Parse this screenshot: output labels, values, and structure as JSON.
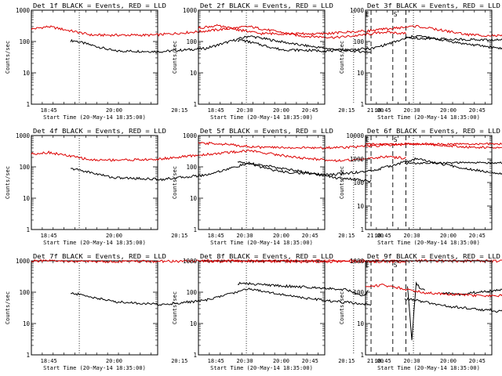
{
  "figure": {
    "series_colors": {
      "events": "#000000",
      "lld": "#dd0000"
    },
    "x_axis": {
      "label": "Start Time (20-May-14 18:35:00)",
      "unit": "UT time (minutes after 18:35:00)",
      "range_min": [
        6,
        35
      ],
      "ticks": [
        {
          "min": 10,
          "label": "18:45"
        },
        {
          "min": 25,
          "label": "20:00"
        },
        {
          "min": 40,
          "label": "20:15"
        },
        {
          "min": 55,
          "label": "20:30"
        },
        {
          "min": 70,
          "label": "20:45"
        },
        {
          "min": 85,
          "label": "21:00"
        }
      ]
    }
  },
  "chart_data": [
    {
      "type": "line",
      "title": "Det 1f BLACK = Events, RED = LLD",
      "ylabel": "Counts/sec",
      "yscale": "log",
      "ylim": [
        1,
        1000
      ],
      "yticks": [
        "1",
        "10",
        "100",
        "1000"
      ],
      "markers": {
        "dotted": [
          17,
          80
        ],
        "dashed": [
          84,
          89,
          92
        ],
        "labels": [
          "E",
          "S"
        ]
      },
      "series": [
        {
          "role": "events",
          "points": [
            [
              16,
              105
            ],
            [
              25,
              50
            ],
            [
              36,
              48
            ],
            [
              46,
              60
            ],
            [
              56,
              150
            ],
            [
              67,
              80
            ],
            [
              76,
              55
            ],
            [
              80,
              50
            ],
            [
              84,
              45
            ]
          ],
          "segments": [
            [
              15,
              84
            ]
          ]
        },
        {
          "role": "lld",
          "points": [
            [
              6,
              250
            ],
            [
              10,
              300
            ],
            [
              20,
              160
            ],
            [
              34,
              160
            ],
            [
              45,
              210
            ],
            [
              56,
              300
            ],
            [
              68,
              150
            ],
            [
              76,
              135
            ],
            [
              82,
              160
            ],
            [
              87,
              200
            ],
            [
              92,
              180
            ]
          ],
          "segments": [
            [
              6,
              92
            ]
          ]
        }
      ]
    },
    {
      "type": "line",
      "title": "Det 2f BLACK = Events, RED = LLD",
      "ylabel": "Counts/sec",
      "yscale": "log",
      "ylim": [
        1,
        1000
      ],
      "yticks": [
        "1",
        "10",
        "100",
        "1000"
      ],
      "markers": {
        "dotted": [
          17,
          80
        ],
        "dashed": [
          84,
          89,
          92
        ],
        "labels": [
          "E",
          "S"
        ]
      },
      "series": [
        {
          "role": "events",
          "points": [
            [
              16,
              110
            ],
            [
              25,
              55
            ],
            [
              36,
              50
            ],
            [
              46,
              60
            ],
            [
              56,
              155
            ],
            [
              67,
              85
            ],
            [
              76,
              60
            ],
            [
              80,
              55
            ],
            [
              84,
              50
            ]
          ],
          "segments": [
            [
              15,
              84
            ]
          ]
        },
        {
          "role": "lld",
          "points": [
            [
              6,
              270
            ],
            [
              10,
              320
            ],
            [
              20,
              180
            ],
            [
              34,
              175
            ],
            [
              45,
              220
            ],
            [
              56,
              310
            ],
            [
              68,
              165
            ],
            [
              76,
              150
            ],
            [
              82,
              180
            ],
            [
              87,
              230
            ],
            [
              92,
              210
            ]
          ],
          "segments": [
            [
              6,
              92
            ]
          ]
        }
      ]
    },
    {
      "type": "line",
      "title": "Det 3f BLACK = Events, RED = LLD",
      "ylabel": "Counts/sec",
      "yscale": "log",
      "ylim": [
        1,
        1000
      ],
      "yticks": [
        "1",
        "10",
        "100",
        "1000"
      ],
      "markers": {
        "dotted": [
          17,
          80
        ],
        "dashed": [
          84,
          89,
          92
        ],
        "labels": [
          "E",
          "S"
        ]
      },
      "series": [
        {
          "role": "events",
          "points": [
            [
              16,
              130
            ],
            [
              30,
              115
            ],
            [
              40,
              110
            ],
            [
              44,
              85
            ],
            [
              46,
              80
            ],
            [
              47,
              115
            ],
            [
              55,
              125
            ],
            [
              62,
              120
            ],
            [
              70,
              105
            ],
            [
              82,
              95
            ]
          ],
          "segments": [
            [
              15,
              82
            ]
          ]
        }
      ]
    },
    {
      "type": "line",
      "title": "Det 4f BLACK = Events, RED = LLD",
      "ylabel": "Counts/sec",
      "yscale": "log",
      "ylim": [
        1,
        1000
      ],
      "yticks": [
        "1",
        "10",
        "100",
        "1000"
      ],
      "markers": {
        "dotted": [
          17,
          80
        ],
        "dashed": [
          84,
          89,
          92
        ],
        "labels": [
          "E",
          "S"
        ]
      },
      "series": [
        {
          "role": "events",
          "points": [
            [
              16,
              85
            ],
            [
              25,
              45
            ],
            [
              36,
              40
            ],
            [
              46,
              55
            ],
            [
              56,
              130
            ],
            [
              67,
              75
            ],
            [
              76,
              45
            ],
            [
              80,
              40
            ],
            [
              84,
              35
            ]
          ],
          "segments": [
            [
              15,
              84
            ]
          ]
        },
        {
          "role": "lld",
          "points": [
            [
              6,
              260
            ],
            [
              10,
              290
            ],
            [
              20,
              165
            ],
            [
              34,
              170
            ],
            [
              45,
              240
            ],
            [
              56,
              330
            ],
            [
              68,
              190
            ],
            [
              76,
              160
            ],
            [
              82,
              170
            ],
            [
              87,
              210
            ],
            [
              92,
              190
            ]
          ],
          "segments": [
            [
              6,
              92
            ]
          ]
        }
      ]
    },
    {
      "type": "line",
      "title": "Det 5f BLACK = Events, RED = LLD",
      "ylabel": "Counts/sec",
      "yscale": "log",
      "ylim": [
        1,
        1000
      ],
      "yticks": [
        "1",
        "10",
        "100",
        "1000"
      ],
      "markers": {
        "dotted": [
          17,
          80
        ],
        "dashed": [
          84,
          89,
          92
        ],
        "labels": [
          "E",
          "S"
        ]
      },
      "series": [
        {
          "role": "events",
          "points": [
            [
              16,
              140
            ],
            [
              25,
              70
            ],
            [
              36,
              55
            ],
            [
              46,
              75
            ],
            [
              56,
              180
            ],
            [
              67,
              90
            ],
            [
              76,
              60
            ],
            [
              84,
              55
            ]
          ],
          "segments": [
            [
              15,
              84
            ]
          ]
        },
        {
          "role": "lld",
          "points": [
            [
              6,
              560
            ],
            [
              10,
              560
            ],
            [
              20,
              420
            ],
            [
              34,
              400
            ],
            [
              45,
              450
            ],
            [
              56,
              560
            ],
            [
              68,
              430
            ],
            [
              76,
              400
            ],
            [
              82,
              410
            ],
            [
              88,
              440
            ],
            [
              92,
              430
            ]
          ],
          "segments": [
            [
              6,
              92
            ]
          ]
        }
      ]
    },
    {
      "type": "line",
      "title": "Det 6f BLACK = Events, RED = LLD",
      "ylabel": "Counts/sec",
      "yscale": "log",
      "ylim": [
        1,
        10000
      ],
      "yticks": [
        "1",
        "10",
        "100",
        "1000",
        "10000"
      ],
      "markers": {
        "dotted": [
          17,
          80
        ],
        "dashed": [
          84,
          89,
          92
        ],
        "labels": [
          "E",
          "S"
        ]
      },
      "series": [
        {
          "role": "events",
          "points": [
            [
              16,
              650
            ],
            [
              30,
              700
            ],
            [
              40,
              680
            ],
            [
              44,
              420
            ],
            [
              46,
              400
            ],
            [
              47,
              650
            ],
            [
              55,
              620
            ],
            [
              62,
              600
            ],
            [
              70,
              560
            ],
            [
              82,
              480
            ]
          ],
          "segments": [
            [
              15,
              82
            ]
          ]
        },
        {
          "role": "lld",
          "points": [
            [
              6,
              4300
            ],
            [
              20,
              4300
            ],
            [
              34,
              4350
            ],
            [
              45,
              4400
            ],
            [
              56,
              4500
            ],
            [
              68,
              4400
            ],
            [
              82,
              4300
            ],
            [
              92,
              4300
            ]
          ],
          "segments": [
            [
              6,
              92
            ]
          ]
        }
      ]
    },
    {
      "type": "line",
      "title": "Det 7f BLACK = Events, RED = LLD",
      "ylabel": "Counts/sec",
      "yscale": "log",
      "ylim": [
        1,
        1000
      ],
      "yticks": [
        "1",
        "10",
        "100",
        "1000"
      ],
      "markers": {
        "dotted": [
          17,
          80
        ],
        "dashed": [
          84,
          89,
          92
        ],
        "labels": [
          "E",
          "S"
        ]
      },
      "series": [
        {
          "role": "events",
          "points": [
            [
              16,
              90
            ],
            [
              25,
              50
            ],
            [
              36,
              40
            ],
            [
              46,
              55
            ],
            [
              56,
              130
            ],
            [
              67,
              70
            ],
            [
              76,
              50
            ],
            [
              80,
              45
            ],
            [
              84,
              40
            ]
          ],
          "segments": [
            [
              15,
              84
            ]
          ]
        },
        {
          "role": "lld",
          "points": [
            [
              6,
              1000
            ],
            [
              20,
              950
            ],
            [
              34,
              960
            ],
            [
              45,
              980
            ],
            [
              56,
              1000
            ],
            [
              68,
              940
            ],
            [
              82,
              960
            ],
            [
              92,
              950
            ]
          ],
          "segments": [
            [
              6,
              92
            ]
          ]
        }
      ]
    },
    {
      "type": "line",
      "title": "Det 8f BLACK = Events, RED = LLD",
      "ylabel": "Counts/sec",
      "yscale": "log",
      "ylim": [
        1,
        1000
      ],
      "yticks": [
        "1",
        "10",
        "100",
        "1000"
      ],
      "markers": {
        "dotted": [
          17,
          80
        ],
        "dashed": [
          84,
          89,
          92
        ],
        "labels": [
          "E",
          "S"
        ]
      },
      "series": [
        {
          "role": "events",
          "points": [
            [
              16,
              190
            ],
            [
              22,
              170
            ],
            [
              28,
              150
            ],
            [
              34,
              140
            ],
            [
              40,
              120
            ],
            [
              44,
              75
            ],
            [
              45,
              110
            ],
            [
              50,
              120
            ],
            [
              54,
              150
            ],
            [
              55,
              3
            ],
            [
              56,
              200
            ],
            [
              57,
              130
            ],
            [
              62,
              95
            ],
            [
              66,
              85
            ],
            [
              70,
              100
            ],
            [
              76,
              120
            ],
            [
              82,
              110
            ]
          ],
          "segments": [
            [
              15,
              45
            ],
            [
              54,
              58
            ],
            [
              62,
              82
            ]
          ]
        },
        {
          "role": "lld",
          "points": [
            [
              6,
              1000
            ],
            [
              20,
              980
            ],
            [
              34,
              990
            ],
            [
              45,
              1000
            ],
            [
              56,
              1000
            ],
            [
              68,
              990
            ],
            [
              82,
              980
            ],
            [
              92,
              990
            ]
          ],
          "segments": [
            [
              6,
              92
            ]
          ]
        }
      ]
    },
    {
      "type": "line",
      "title": "Det 9f BLACK = Events, RED = LLD",
      "ylabel": "Counts/sec",
      "yscale": "log",
      "ylim": [
        1,
        1000
      ],
      "yticks": [
        "1",
        "10",
        "100",
        "1000"
      ],
      "markers": {
        "dotted": [
          17,
          80
        ],
        "dashed": [
          84,
          89,
          92
        ],
        "labels": [
          "E",
          "S"
        ]
      },
      "series": [
        {
          "role": "events",
          "points": [
            [
              16,
              60
            ],
            [
              25,
              35
            ],
            [
              36,
              25
            ],
            [
              46,
              35
            ],
            [
              56,
              80
            ],
            [
              67,
              45
            ],
            [
              76,
              35
            ],
            [
              80,
              32
            ],
            [
              84,
              30
            ]
          ],
          "segments": [
            [
              15,
              84
            ]
          ]
        },
        {
          "role": "lld",
          "points": [
            [
              6,
              150
            ],
            [
              10,
              170
            ],
            [
              20,
              95
            ],
            [
              34,
              75
            ],
            [
              45,
              90
            ],
            [
              56,
              160
            ],
            [
              68,
              95
            ],
            [
              76,
              85
            ],
            [
              82,
              95
            ],
            [
              87,
              120
            ],
            [
              92,
              110
            ]
          ],
          "segments": [
            [
              6,
              92
            ]
          ]
        }
      ]
    }
  ]
}
